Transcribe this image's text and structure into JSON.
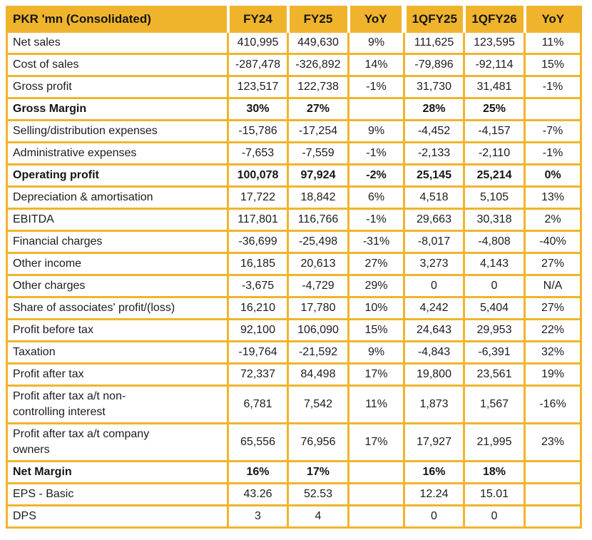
{
  "colors": {
    "accent_amber": "#F0B42C",
    "text": "#1C1C1C",
    "background": "#FFFFFF",
    "header_separator": "#FFFFFF"
  },
  "chart_data": {
    "type": "table",
    "title": "PKR 'mn (Consolidated)",
    "columns": [
      "PKR 'mn (Consolidated)",
      "FY24",
      "FY25",
      "YoY",
      "1QFY25",
      "1QFY26",
      "YoY"
    ],
    "rows": [
      {
        "label": "Net sales",
        "bold": false,
        "values": [
          "410,995",
          "449,630",
          "9%",
          "111,625",
          "123,595",
          "11%"
        ]
      },
      {
        "label": "Cost of sales",
        "bold": false,
        "values": [
          "-287,478",
          "-326,892",
          "14%",
          "-79,896",
          "-92,114",
          "15%"
        ]
      },
      {
        "label": "Gross profit",
        "bold": false,
        "values": [
          "123,517",
          "122,738",
          "-1%",
          "31,730",
          "31,481",
          "-1%"
        ]
      },
      {
        "label": "Gross Margin",
        "bold": true,
        "values": [
          "30%",
          "27%",
          "",
          "28%",
          "25%",
          ""
        ]
      },
      {
        "label": "Selling/distribution expenses",
        "bold": false,
        "values": [
          "-15,786",
          "-17,254",
          "9%",
          "-4,452",
          "-4,157",
          "-7%"
        ]
      },
      {
        "label": "Administrative expenses",
        "bold": false,
        "values": [
          "-7,653",
          "-7,559",
          "-1%",
          "-2,133",
          "-2,110",
          "-1%"
        ]
      },
      {
        "label": "Operating profit",
        "bold": true,
        "values": [
          "100,078",
          "97,924",
          "-2%",
          "25,145",
          "25,214",
          "0%"
        ]
      },
      {
        "label": "Depreciation & amortisation",
        "bold": false,
        "values": [
          "17,722",
          "18,842",
          "6%",
          "4,518",
          "5,105",
          "13%"
        ]
      },
      {
        "label": "EBITDA",
        "bold": false,
        "values": [
          "117,801",
          "116,766",
          "-1%",
          "29,663",
          "30,318",
          "2%"
        ]
      },
      {
        "label": "Financial charges",
        "bold": false,
        "values": [
          "-36,699",
          "-25,498",
          "-31%",
          "-8,017",
          "-4,808",
          "-40%"
        ]
      },
      {
        "label": "Other income",
        "bold": false,
        "values": [
          "16,185",
          "20,613",
          "27%",
          "3,273",
          "4,143",
          "27%"
        ]
      },
      {
        "label": "Other charges",
        "bold": false,
        "values": [
          "-3,675",
          "-4,729",
          "29%",
          "0",
          "0",
          "N/A"
        ]
      },
      {
        "label": "Share of associates' profit/(loss)",
        "bold": false,
        "values": [
          "16,210",
          "17,780",
          "10%",
          "4,242",
          "5,404",
          "27%"
        ]
      },
      {
        "label": "Profit before tax",
        "bold": false,
        "values": [
          "92,100",
          "106,090",
          "15%",
          "24,643",
          "29,953",
          "22%"
        ]
      },
      {
        "label": "Taxation",
        "bold": false,
        "values": [
          "-19,764",
          "-21,592",
          "9%",
          "-4,843",
          "-6,391",
          "32%"
        ]
      },
      {
        "label": "Profit after tax",
        "bold": false,
        "values": [
          "72,337",
          "84,498",
          "17%",
          "19,800",
          "23,561",
          "19%"
        ]
      },
      {
        "label": "Profit after tax a/t non-controlling interest",
        "bold": false,
        "values": [
          "6,781",
          "7,542",
          "11%",
          "1,873",
          "1,567",
          "-16%"
        ]
      },
      {
        "label": "Profit after tax a/t company owners",
        "bold": false,
        "values": [
          "65,556",
          "76,956",
          "17%",
          "17,927",
          "21,995",
          "23%"
        ]
      },
      {
        "label": "Net Margin",
        "bold": true,
        "values": [
          "16%",
          "17%",
          "",
          "16%",
          "18%",
          ""
        ]
      },
      {
        "label": "EPS - Basic",
        "bold": false,
        "values": [
          "43.26",
          "52.53",
          "",
          "12.24",
          "15.01",
          ""
        ]
      },
      {
        "label": "DPS",
        "bold": false,
        "values": [
          "3",
          "4",
          "",
          "0",
          "0",
          ""
        ]
      }
    ]
  }
}
